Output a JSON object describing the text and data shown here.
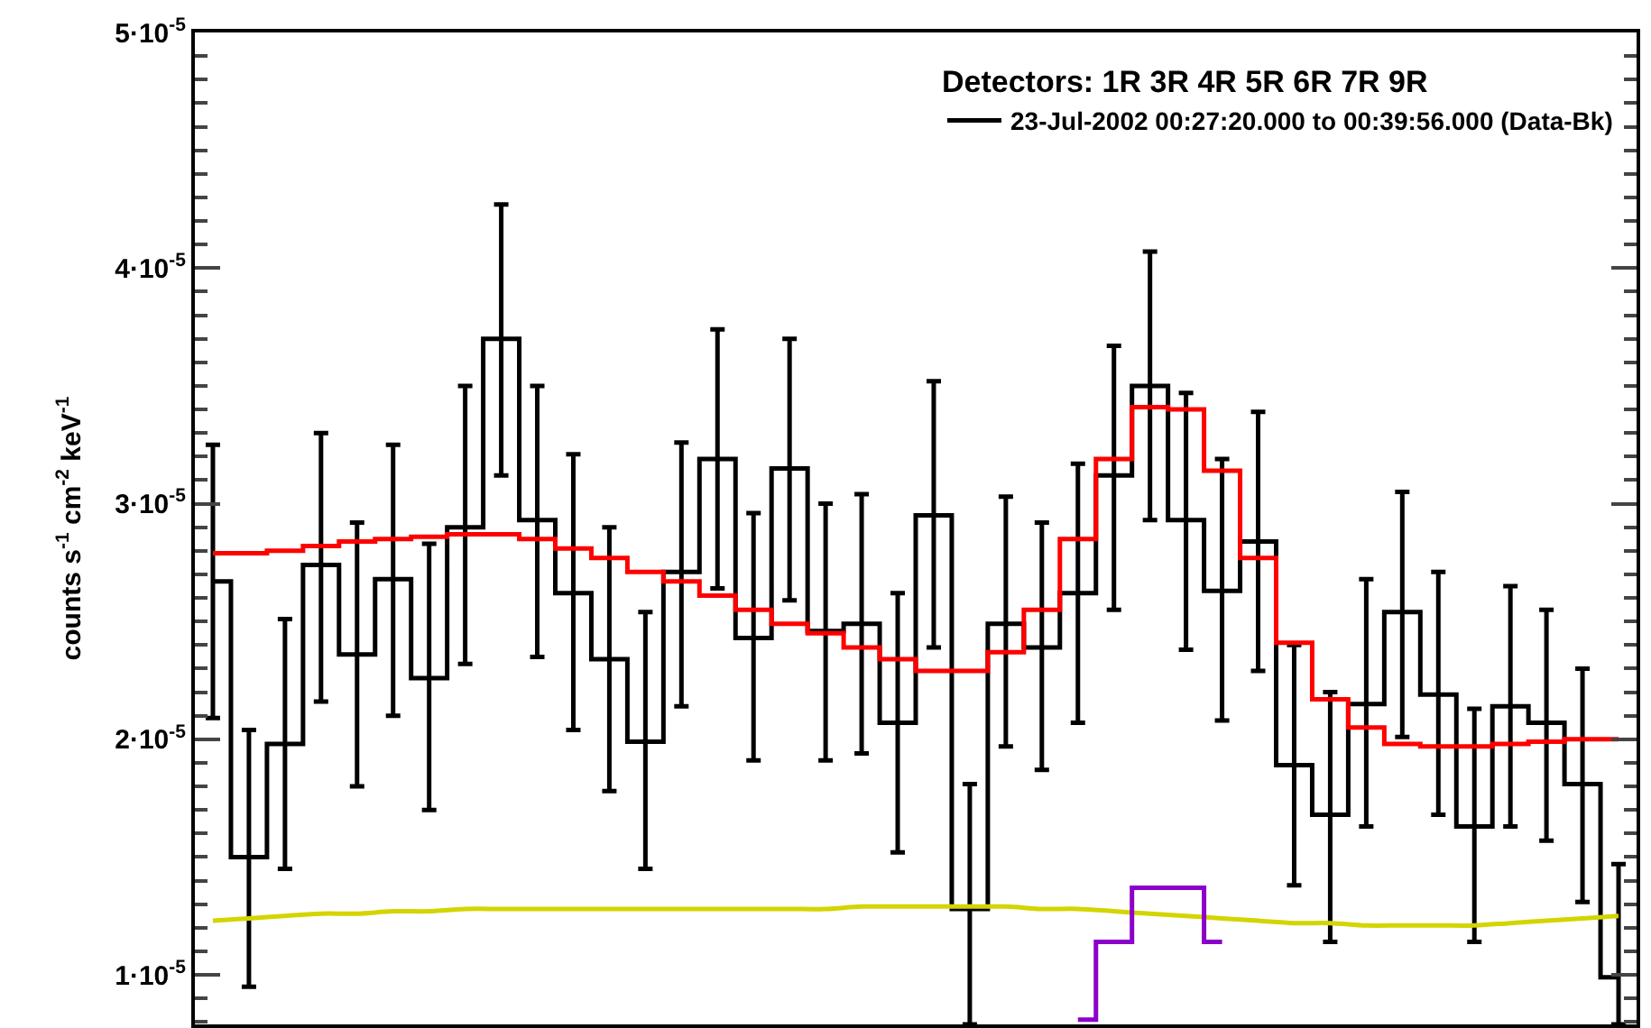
{
  "chart_data": {
    "type": "step",
    "ylabel": "counts s$^{-1}$ cm$^{-2}$ keV$^{-1}$",
    "legend_title": "Detectors: 1R 3R 4R 5R 6R 7R 9R",
    "categories": [
      null,
      null,
      null,
      null,
      null,
      null,
      null,
      null,
      null,
      null,
      null,
      null,
      null,
      null,
      null,
      null,
      null,
      null,
      null,
      null,
      null,
      null,
      null,
      null,
      null,
      null,
      null,
      null,
      null,
      null,
      null,
      null,
      null,
      null,
      null,
      null,
      null,
      null,
      null,
      null
    ],
    "series": [
      {
        "name": "23-Jul-2002 00:27:20.000 to 00:39:56.000 (Data-Bk)",
        "color": "#000000",
        "values": [
          2.67e-05,
          1.5e-05,
          1.98e-05,
          2.74e-05,
          2.36e-05,
          2.68e-05,
          2.26e-05,
          2.9e-05,
          3.7e-05,
          2.93e-05,
          2.62e-05,
          2.34e-05,
          1.99e-05,
          2.71e-05,
          3.19e-05,
          2.43e-05,
          3.15e-05,
          2.46e-05,
          2.49e-05,
          2.07e-05,
          2.95e-05,
          1.28e-05,
          2.49e-05,
          2.39e-05,
          2.62e-05,
          3.12e-05,
          3.5e-05,
          2.93e-05,
          2.63e-05,
          2.84e-05,
          1.89e-05,
          1.68e-05,
          2.15e-05,
          2.54e-05,
          2.19e-05,
          1.63e-05,
          2.14e-05,
          2.07e-05,
          1.81e-05,
          9.9e-06
        ],
        "errors": [
          [
            2.09e-05,
            3.25e-05
          ],
          [
            9.5e-06,
            2.04e-05
          ],
          [
            1.45e-05,
            2.51e-05
          ],
          [
            2.16e-05,
            3.3e-05
          ],
          [
            1.8e-05,
            2.92e-05
          ],
          [
            2.1e-05,
            3.25e-05
          ],
          [
            1.7e-05,
            2.83e-05
          ],
          [
            2.32e-05,
            3.5e-05
          ],
          [
            3.12e-05,
            4.27e-05
          ],
          [
            2.35e-05,
            3.5e-05
          ],
          [
            2.04e-05,
            3.21e-05
          ],
          [
            1.78e-05,
            2.9e-05
          ],
          [
            1.45e-05,
            2.54e-05
          ],
          [
            2.14e-05,
            3.26e-05
          ],
          [
            2.64e-05,
            3.74e-05
          ],
          [
            1.91e-05,
            2.96e-05
          ],
          [
            2.59e-05,
            3.7e-05
          ],
          [
            1.91e-05,
            3e-05
          ],
          [
            1.94e-05,
            3.04e-05
          ],
          [
            1.52e-05,
            2.62e-05
          ],
          [
            2.39e-05,
            3.52e-05
          ],
          [
            7.9e-06,
            1.81e-05
          ],
          [
            1.97e-05,
            3.03e-05
          ],
          [
            1.87e-05,
            2.92e-05
          ],
          [
            2.07e-05,
            3.17e-05
          ],
          [
            2.55e-05,
            3.67e-05
          ],
          [
            2.93e-05,
            4.07e-05
          ],
          [
            2.38e-05,
            3.47e-05
          ],
          [
            2.08e-05,
            3.19e-05
          ],
          [
            2.29e-05,
            3.39e-05
          ],
          [
            1.38e-05,
            2.4e-05
          ],
          [
            1.14e-05,
            2.2e-05
          ],
          [
            1.63e-05,
            2.68e-05
          ],
          [
            2.01e-05,
            3.05e-05
          ],
          [
            1.68e-05,
            2.71e-05
          ],
          [
            1.14e-05,
            2.13e-05
          ],
          [
            1.63e-05,
            2.65e-05
          ],
          [
            1.57e-05,
            2.55e-05
          ],
          [
            1.31e-05,
            2.3e-05
          ],
          [
            7.9e-06,
            1.47e-05
          ]
        ]
      },
      {
        "color": "#ff0000",
        "values": [
          2.79e-05,
          2.79e-05,
          2.8e-05,
          2.82e-05,
          2.84e-05,
          2.85e-05,
          2.86e-05,
          2.87e-05,
          2.87e-05,
          2.85e-05,
          2.81e-05,
          2.77e-05,
          2.71e-05,
          2.67e-05,
          2.61e-05,
          2.55e-05,
          2.49e-05,
          2.45e-05,
          2.39e-05,
          2.34e-05,
          2.29e-05,
          2.29e-05,
          2.37e-05,
          2.55e-05,
          2.85e-05,
          3.19e-05,
          3.41e-05,
          3.4e-05,
          3.14e-05,
          2.77e-05,
          2.41e-05,
          2.17e-05,
          2.05e-05,
          1.98e-05,
          1.97e-05,
          1.97e-05,
          1.98e-05,
          1.99e-05,
          2e-05,
          2e-05
        ]
      },
      {
        "type": "line",
        "color": "#d4d400",
        "values": [
          1.23e-05,
          1.24e-05,
          1.25e-05,
          1.26e-05,
          1.26e-05,
          1.27e-05,
          1.27e-05,
          1.28e-05,
          1.28e-05,
          1.28e-05,
          1.28e-05,
          1.28e-05,
          1.28e-05,
          1.28e-05,
          1.28e-05,
          1.28e-05,
          1.28e-05,
          1.28e-05,
          1.29e-05,
          1.29e-05,
          1.29e-05,
          1.29e-05,
          1.29e-05,
          1.28e-05,
          1.28e-05,
          1.27e-05,
          1.26e-05,
          1.25e-05,
          1.24e-05,
          1.23e-05,
          1.22e-05,
          1.22e-05,
          1.21e-05,
          1.21e-05,
          1.21e-05,
          1.21e-05,
          1.22e-05,
          1.23e-05,
          1.24e-05,
          1.25e-05
        ]
      },
      {
        "color": "#8b00c8",
        "values": [
          null,
          null,
          null,
          null,
          null,
          null,
          null,
          null,
          null,
          null,
          null,
          null,
          null,
          null,
          null,
          null,
          null,
          null,
          null,
          null,
          null,
          null,
          null,
          null,
          8.1e-06,
          1.14e-05,
          1.37e-05,
          1.37e-05,
          1.14e-05,
          null,
          null,
          null,
          null,
          null,
          null,
          null,
          null,
          null,
          null,
          null
        ]
      }
    ],
    "ylim": [
      7.9e-06,
      5e-05
    ],
    "yticks": [
      {
        "value": 1e-05,
        "label": "1·10$^{-5}$"
      },
      {
        "value": 2e-05,
        "label": "2·10$^{-5}$"
      },
      {
        "value": 3e-05,
        "label": "3·10$^{-5}$"
      },
      {
        "value": 4e-05,
        "label": "4·10$^{-5}$"
      },
      {
        "value": 5e-05,
        "label": "5·10$^{-5}$"
      },
      {
        "value": 8e-06,
        "label": null
      },
      {
        "value": 9e-06,
        "label": null
      },
      {
        "value": 1.1e-05,
        "label": null
      },
      {
        "value": 1.2e-05,
        "label": null
      },
      {
        "value": 1.3e-05,
        "label": null
      },
      {
        "value": 1.4e-05,
        "label": null
      },
      {
        "value": 1.5e-05,
        "label": null
      },
      {
        "value": 1.6e-05,
        "label": null
      },
      {
        "value": 1.7e-05,
        "label": null
      },
      {
        "value": 1.8e-05,
        "label": null
      },
      {
        "value": 1.9e-05,
        "label": null
      },
      {
        "value": 2.1e-05,
        "label": null
      },
      {
        "value": 2.2e-05,
        "label": null
      },
      {
        "value": 2.3e-05,
        "label": null
      },
      {
        "value": 2.4e-05,
        "label": null
      },
      {
        "value": 2.5e-05,
        "label": null
      },
      {
        "value": 2.6e-05,
        "label": null
      },
      {
        "value": 2.7e-05,
        "label": null
      },
      {
        "value": 2.8e-05,
        "label": null
      },
      {
        "value": 2.9e-05,
        "label": null
      },
      {
        "value": 3.1e-05,
        "label": null
      },
      {
        "value": 3.2e-05,
        "label": null
      },
      {
        "value": 3.3e-05,
        "label": null
      },
      {
        "value": 3.4e-05,
        "label": null
      },
      {
        "value": 3.5e-05,
        "label": null
      },
      {
        "value": 3.6e-05,
        "label": null
      },
      {
        "value": 3.7e-05,
        "label": null
      },
      {
        "value": 3.8e-05,
        "label": null
      },
      {
        "value": 3.9e-05,
        "label": null
      },
      {
        "value": 4.1e-05,
        "label": null
      },
      {
        "value": 4.2e-05,
        "label": null
      },
      {
        "value": 4.3e-05,
        "label": null
      },
      {
        "value": 4.4e-05,
        "label": null
      },
      {
        "value": 4.5e-05,
        "label": null
      },
      {
        "value": 4.6e-05,
        "label": null
      },
      {
        "value": 4.7e-05,
        "label": null
      },
      {
        "value": 4.8e-05,
        "label": null
      },
      {
        "value": 4.9e-05,
        "label": null
      }
    ],
    "tick_labels": "y",
    "legend": "top right",
    "marker": "none",
    "line_style": "solid"
  }
}
